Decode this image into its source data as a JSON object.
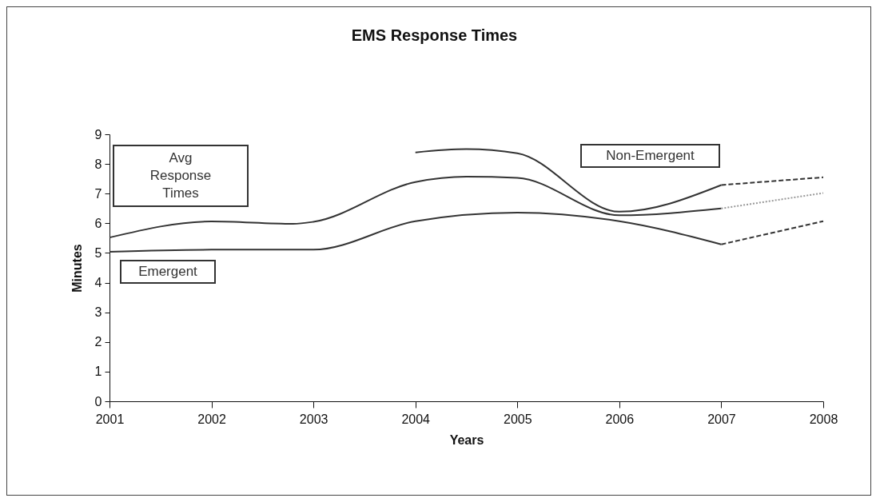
{
  "chart_data": {
    "type": "line",
    "title": "EMS Response Times",
    "xlabel": "Years",
    "ylabel": "Minutes",
    "xlim": [
      2001,
      2008
    ],
    "xticks": [
      2001,
      2002,
      2003,
      2004,
      2005,
      2006,
      2007,
      2008
    ],
    "ylim": [
      0,
      9
    ],
    "yticks": [
      0,
      1,
      2,
      3,
      4,
      5,
      6,
      7,
      8,
      9
    ],
    "grid": false,
    "marker": "none",
    "series": [
      {
        "name": "Avg Response Times",
        "color": "#333333",
        "line_style": "solid",
        "x": [
          2001,
          2002,
          2002.8,
          2003,
          2004,
          2004.5,
          2005,
          2006,
          2007
        ],
        "values": [
          5.52,
          6.06,
          5.98,
          6.05,
          7.39,
          7.57,
          7.53,
          6.27,
          6.5
        ]
      },
      {
        "name": "Emergent",
        "color": "#333333",
        "line_style": "solid",
        "x": [
          2001,
          2002,
          2003,
          2004,
          2005,
          2006,
          2007
        ],
        "values": [
          5.04,
          5.11,
          5.11,
          6.07,
          6.36,
          6.07,
          5.29
        ]
      },
      {
        "name": "Non-Emergent",
        "color": "#333333",
        "line_style": "solid",
        "x": [
          2004,
          2004.5,
          2005,
          2006,
          2007
        ],
        "values": [
          8.39,
          8.5,
          8.36,
          6.39,
          7.29
        ]
      },
      {
        "color": "#333333",
        "line_style": "dashed",
        "x": [
          2007,
          2008
        ],
        "values": [
          7.29,
          7.55
        ]
      },
      {
        "color": "#999999",
        "line_style": "dotted",
        "x": [
          2007,
          2008
        ],
        "values": [
          6.5,
          7.02
        ]
      },
      {
        "color": "#333333",
        "line_style": "dashed",
        "x": [
          2007,
          2008
        ],
        "values": [
          5.29,
          6.07
        ]
      }
    ]
  }
}
